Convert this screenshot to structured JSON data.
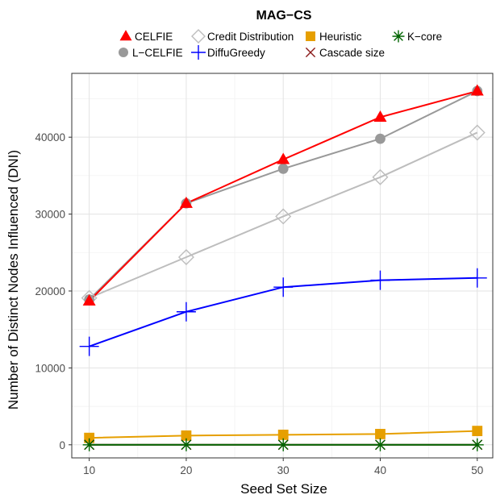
{
  "chart_data": {
    "type": "line",
    "title": "MAG−CS",
    "xlabel": "Seed Set Size",
    "ylabel": "Number of Distinct Nodes Influenced (DNI)",
    "x": [
      10,
      20,
      30,
      40,
      50
    ],
    "xlim": [
      8.2,
      51.6
    ],
    "ylim": [
      -1700,
      48300
    ],
    "x_ticks": [
      "10",
      "20",
      "30",
      "40",
      "50"
    ],
    "y_ticks": [
      0,
      10000,
      20000,
      30000,
      40000
    ],
    "y_tick_labels": [
      "0",
      "10000",
      "20000",
      "30000",
      "40000"
    ],
    "grid": true,
    "legend_position": "top",
    "series": [
      {
        "name": "Credit Distribution",
        "marker": "open-diamond",
        "color": "#bdbdbd",
        "values": [
          19100,
          24400,
          29700,
          34800,
          40600
        ]
      },
      {
        "name": "L−CELFIE",
        "marker": "circle",
        "color": "#999999",
        "values": [
          18900,
          31400,
          35900,
          39800,
          46000
        ]
      },
      {
        "name": "CELFIE",
        "marker": "triangle",
        "color": "#ff0000",
        "values": [
          18700,
          31400,
          37100,
          42600,
          46000
        ]
      },
      {
        "name": "DiffuGreedy",
        "marker": "plus",
        "color": "#0000ff",
        "values": [
          12800,
          17300,
          20500,
          21400,
          21700
        ]
      },
      {
        "name": "Heuristic",
        "marker": "square",
        "color": "#e69f00",
        "values": [
          900,
          1200,
          1300,
          1400,
          1800
        ]
      },
      {
        "name": "Cascade size",
        "marker": "x",
        "color": "#8b1a1a",
        "values": [
          0,
          0,
          0,
          0,
          0
        ]
      },
      {
        "name": "K−core",
        "marker": "asterisk",
        "color": "#006400",
        "values": [
          0,
          0,
          0,
          0,
          0
        ]
      }
    ],
    "legend": [
      {
        "name": "CELFIE",
        "marker": "triangle",
        "color": "#ff0000"
      },
      {
        "name": "Credit Distribution",
        "marker": "open-diamond",
        "color": "#bdbdbd"
      },
      {
        "name": "Heuristic",
        "marker": "square",
        "color": "#e69f00"
      },
      {
        "name": "K−core",
        "marker": "asterisk",
        "color": "#006400"
      },
      {
        "name": "L−CELFIE",
        "marker": "circle",
        "color": "#999999"
      },
      {
        "name": "DiffuGreedy",
        "marker": "plus",
        "color": "#0000ff"
      },
      {
        "name": "Cascade size",
        "marker": "x",
        "color": "#8b1a1a"
      }
    ]
  }
}
